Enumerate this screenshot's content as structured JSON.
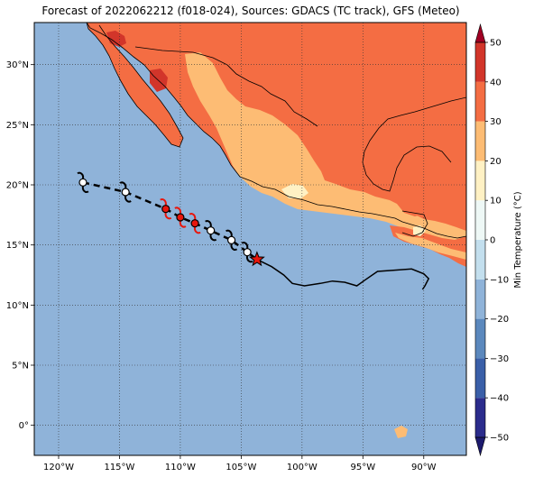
{
  "title": "Forecast of 2022062212 (f018-024), Sources: GDACS (TC track), GFS (Meteo)",
  "map": {
    "extent": {
      "lon_min": -122,
      "lon_max": -86.5,
      "lat_min": -2.5,
      "lat_max": 33.5
    },
    "x_ticks": [
      {
        "lon": -120,
        "label": "120°W"
      },
      {
        "lon": -115,
        "label": "115°W"
      },
      {
        "lon": -110,
        "label": "110°W"
      },
      {
        "lon": -105,
        "label": "105°W"
      },
      {
        "lon": -100,
        "label": "100°W"
      },
      {
        "lon": -95,
        "label": "95°W"
      },
      {
        "lon": -90,
        "label": "90°W"
      }
    ],
    "y_ticks": [
      {
        "lat": 0,
        "label": "0°"
      },
      {
        "lat": 5,
        "label": "5°N"
      },
      {
        "lat": 10,
        "label": "10°N"
      },
      {
        "lat": 15,
        "label": "15°N"
      },
      {
        "lat": 20,
        "label": "20°N"
      },
      {
        "lat": 25,
        "label": "25°N"
      },
      {
        "lat": 30,
        "label": "30°N"
      }
    ],
    "ocean_color": "#8fb3d9",
    "grid": "dotted"
  },
  "track": {
    "forecast_points": [
      {
        "lon": -118.0,
        "lat": 20.2,
        "color": "white"
      },
      {
        "lon": -114.5,
        "lat": 19.4,
        "color": "white"
      },
      {
        "lon": -111.2,
        "lat": 18.0,
        "color": "red"
      },
      {
        "lon": -110.0,
        "lat": 17.3,
        "color": "red"
      },
      {
        "lon": -108.8,
        "lat": 16.8,
        "color": "red"
      },
      {
        "lon": -107.5,
        "lat": 16.2,
        "color": "white"
      },
      {
        "lon": -105.8,
        "lat": 15.4,
        "color": "white"
      },
      {
        "lon": -104.5,
        "lat": 14.4,
        "color": "white"
      }
    ],
    "current_position": {
      "lon": -103.7,
      "lat": 13.8
    }
  },
  "observed_track": [
    [
      -103.7,
      13.8
    ],
    [
      -102.5,
      13.2
    ],
    [
      -101.5,
      12.5
    ],
    [
      -100.8,
      11.8
    ],
    [
      -99.8,
      11.6
    ],
    [
      -98.5,
      11.8
    ],
    [
      -97.5,
      12.0
    ],
    [
      -96.5,
      11.9
    ],
    [
      -95.5,
      11.6
    ],
    [
      -94.8,
      12.1
    ],
    [
      -93.8,
      12.8
    ],
    [
      -92.5,
      12.9
    ],
    [
      -91.0,
      13.0
    ],
    [
      -90.0,
      12.6
    ],
    [
      -89.6,
      12.2
    ],
    [
      -89.9,
      11.6
    ],
    [
      -90.1,
      11.3
    ]
  ],
  "colorbar": {
    "label": "Min Temperature (°C)",
    "min": -50,
    "max": 50,
    "tick_labels": [
      "−50",
      "−40",
      "−30",
      "−20",
      "−10",
      "0",
      "10",
      "20",
      "30",
      "40",
      "50"
    ],
    "tick_values": [
      -50,
      -40,
      -30,
      -20,
      -10,
      0,
      10,
      20,
      30,
      40,
      50
    ],
    "colors": [
      "#2b2c8c",
      "#3a5fa8",
      "#5b88bd",
      "#8fb3d9",
      "#c3dfee",
      "#eef8f6",
      "#fff1c4",
      "#fdbc74",
      "#f46d43",
      "#d2352a",
      "#a00023"
    ]
  },
  "land_colors": {
    "bin_10_20": "#fdbc74",
    "bin_20_30": "#f46d43",
    "bin_30_40": "#d2352a",
    "bin_0_10": "#fff1c4"
  }
}
